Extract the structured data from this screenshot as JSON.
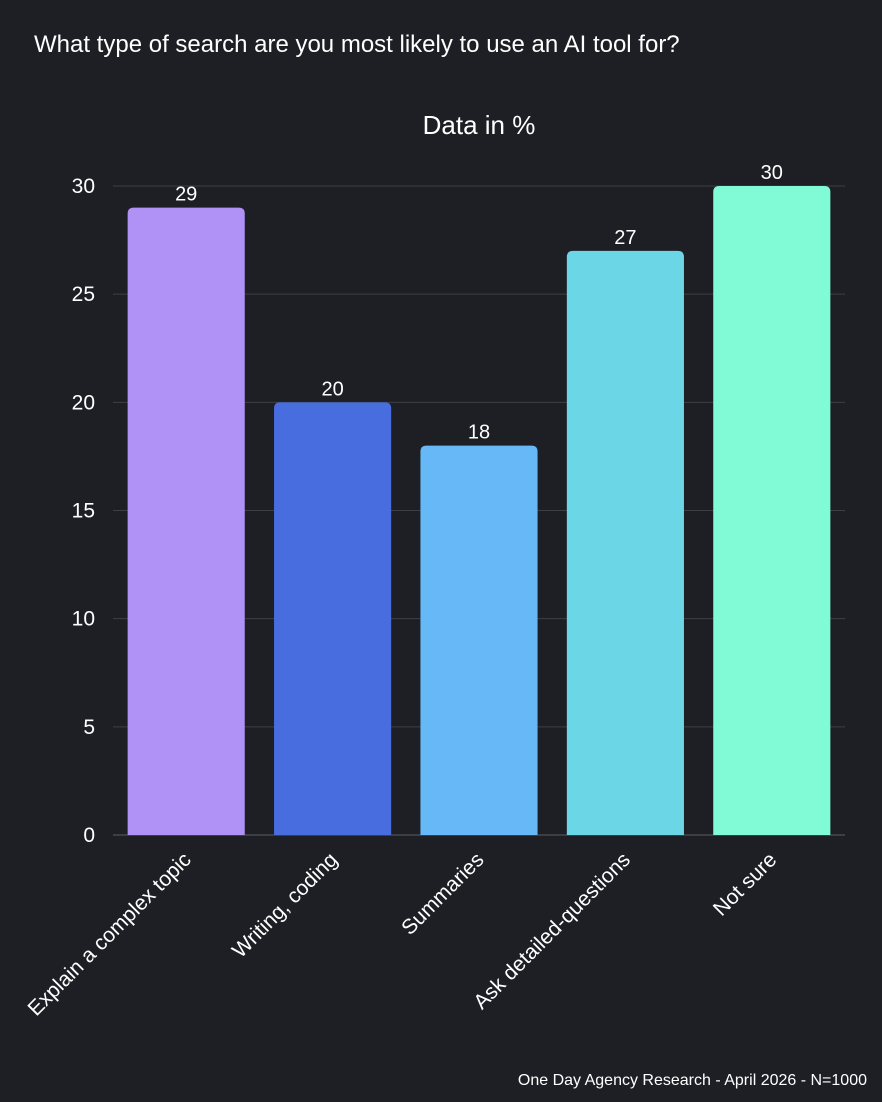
{
  "question": "What type of search are you most likely to use an AI tool for?",
  "source": "One Day Agency Research - April 2026 - N=1000",
  "chart_data": {
    "type": "bar",
    "title": "Data in %",
    "categories": [
      "Explain a complex topic",
      "Writing, coding",
      "Summaries",
      "Ask detailed-questions",
      "Not sure"
    ],
    "values": [
      29,
      20,
      18,
      27,
      30
    ],
    "data_labels": [
      "29",
      "20",
      "18",
      "27",
      "30"
    ],
    "colors": [
      "#b092f6",
      "#476ddf",
      "#66b8f7",
      "#6bd6e6",
      "#80fbd6"
    ],
    "ylim": [
      0,
      30
    ],
    "yticks": [
      0,
      5,
      10,
      15,
      20,
      25,
      30
    ],
    "grid": true,
    "xlabel": "",
    "ylabel": ""
  }
}
